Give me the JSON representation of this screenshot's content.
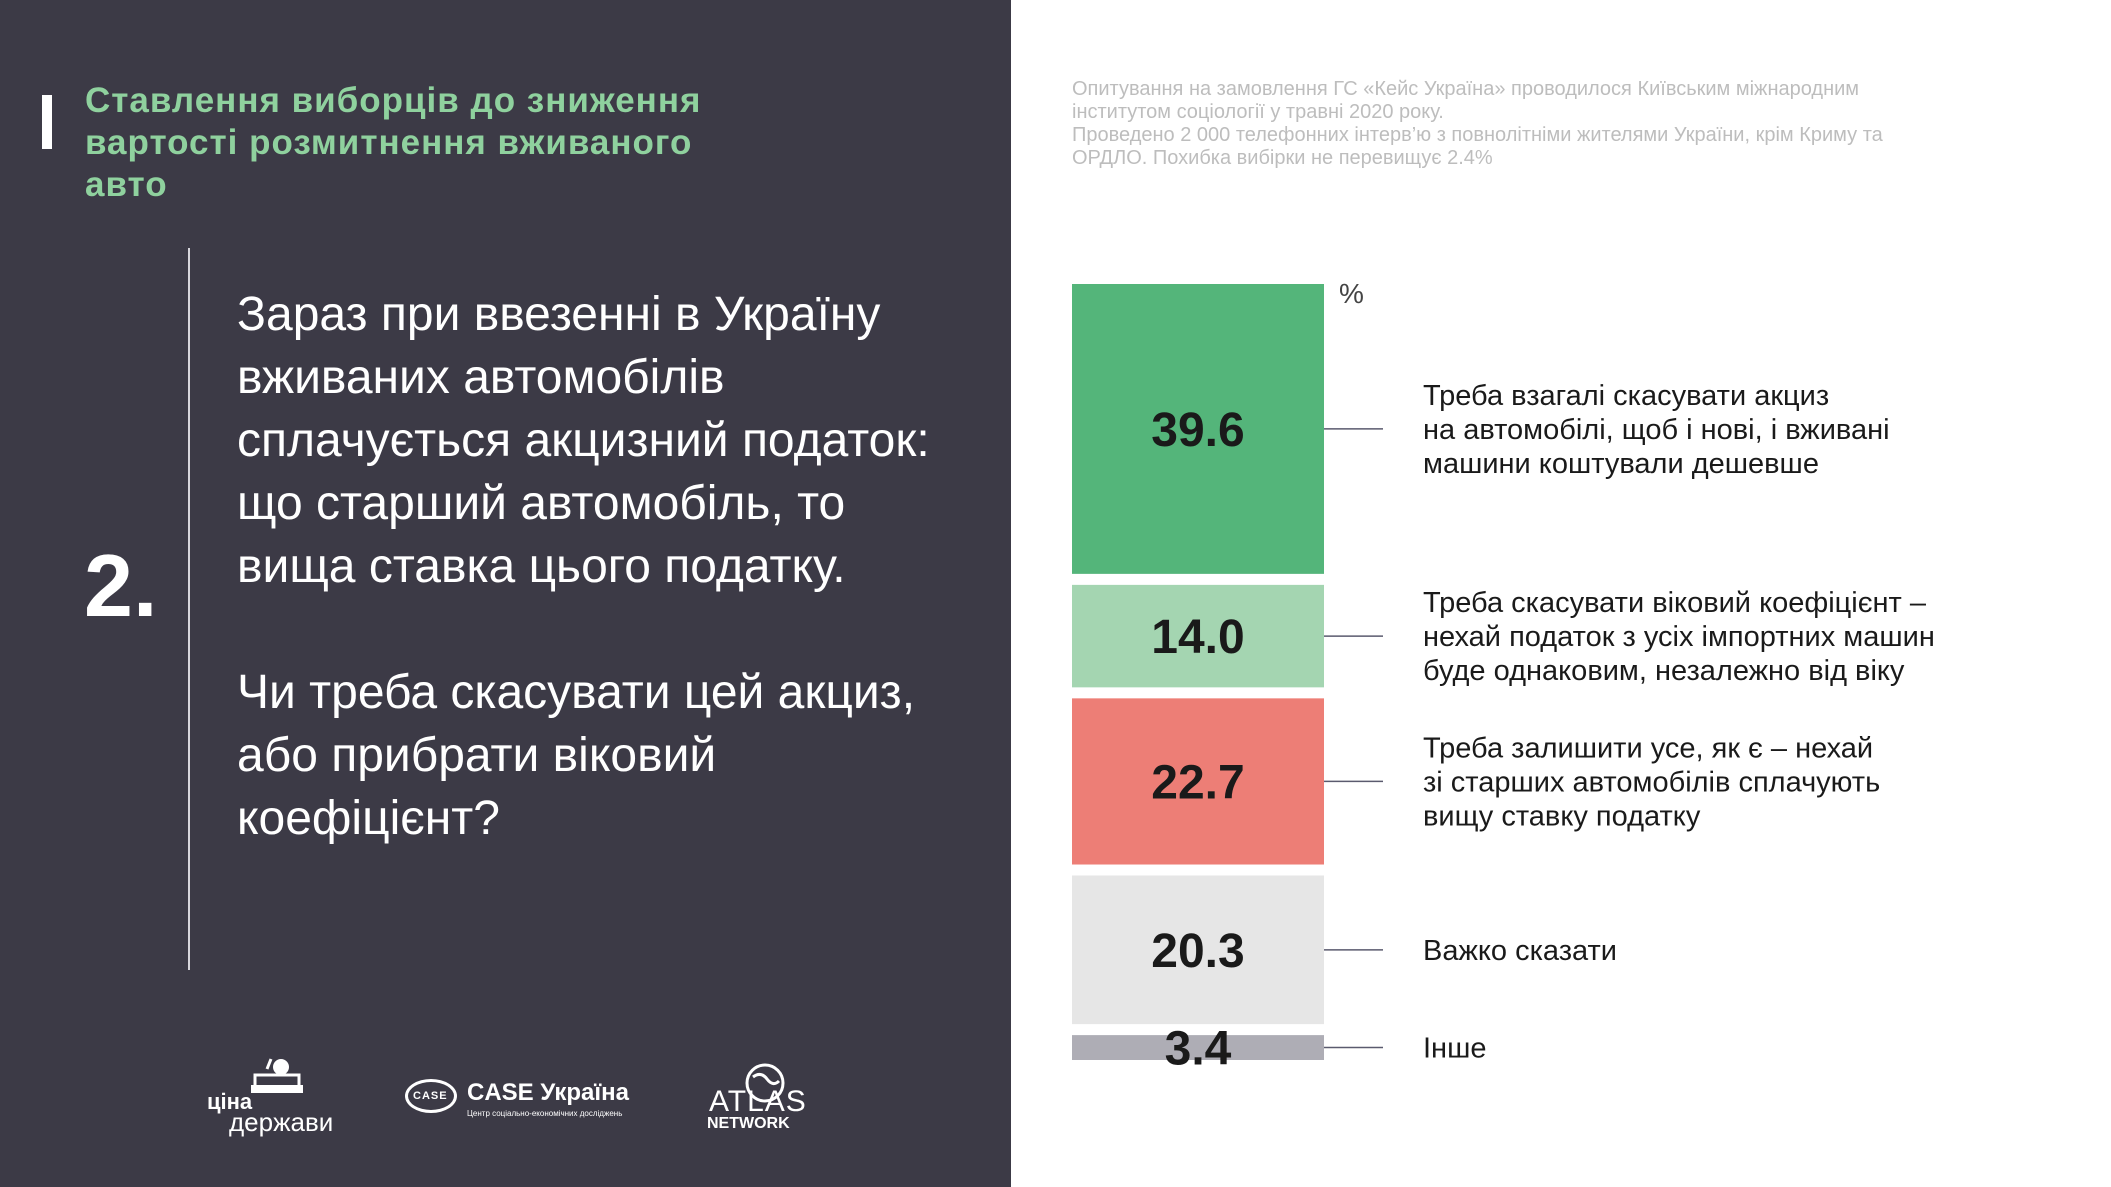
{
  "header": {
    "title": "Ставлення виборців до зниження вартості розмитнення вживаного авто"
  },
  "question": {
    "number": "2.",
    "text": "Зараз при ввезенні в Україну вживаних автомобілів сплачується акцизний податок: що старший автомобіль, то вища ставка цього податку.",
    "ask": "Чи треба скасувати цей  акциз, або прибрати  віковий коефіцієнт?"
  },
  "survey_note": {
    "line1": "Опитування на замовлення ГС «Кейс Україна» проводилося Київським міжнародним інститутом соціології у травні 2020 року.",
    "line2": "Проведено 2 000 телефонних інтерв’ю з повнолітніми жителями України, крім Криму та ОРДЛО. Похибка вибірки не перевищує 2.4%"
  },
  "logos": {
    "cina_line1": "ціна",
    "cina_line2": "держави",
    "case_oval": "CASE",
    "case_name": "CASE Україна",
    "case_sub": "Центр соціально-економічних досліджень",
    "atlas_line1": "ATLAS",
    "atlas_line2": "NETWORK"
  },
  "chart_data": {
    "type": "bar",
    "orientation": "stacked-vertical",
    "unit": "%",
    "categories": [
      "Треба взагалі скасувати акциз на автомобілі, щоб і нові, і вживані машини коштували дешевше",
      "Треба скасувати віковий коефіцієнт – нехай податок з усіх імпортних машин буде однаковим, незалежно від віку",
      "Треба залишити усе, як є – нехай зі старших автомобілів сплачують вищу ставку податку",
      "Важко сказати",
      "Інше"
    ],
    "label_lines": [
      [
        "Треба взагалі скасувати акциз",
        "на автомобілі, щоб і нові, і вживані",
        "машини коштували дешевше"
      ],
      [
        "Треба скасувати віковий коефіцієнт –",
        "нехай податок з усіх імпортних машин",
        "буде однаковим, незалежно від віку"
      ],
      [
        "Треба залишити усе, як є – нехай",
        "зі старших автомобілів сплачують",
        "вищу ставку податку"
      ],
      [
        "Важко сказати"
      ],
      [
        "Інше"
      ]
    ],
    "values": [
      39.6,
      14.0,
      22.7,
      20.3,
      3.4
    ],
    "value_labels": [
      "39.6",
      "14.0",
      "22.7",
      "20.3",
      "3.4"
    ],
    "colors": [
      "#54b57a",
      "#a4d5b1",
      "#ed7e76",
      "#e6e6e6",
      "#aeadb5"
    ]
  }
}
